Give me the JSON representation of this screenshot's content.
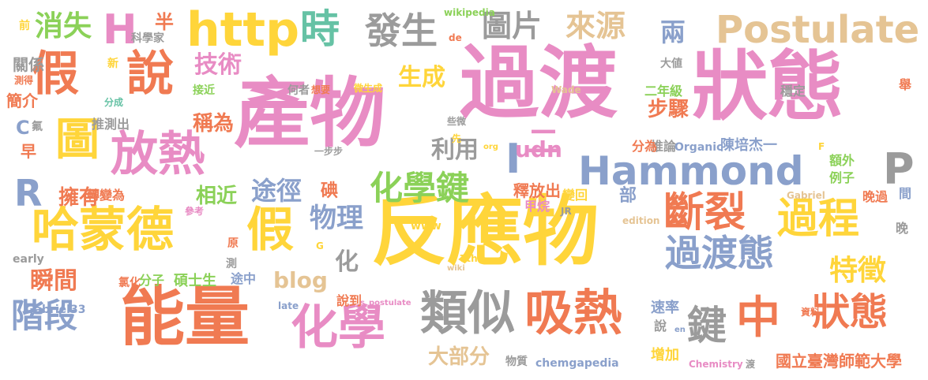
{
  "palette": {
    "pink": "#e88cc4",
    "orange": "#f07a52",
    "yellow": "#ffd53a",
    "blue": "#8aa0cb",
    "green": "#8bd158",
    "gray": "#9b9b9b",
    "tan": "#e5c494",
    "teal": "#66c2a5"
  },
  "words": [
    {
      "text": "產物",
      "color": "pink"
    },
    {
      "text": "過渡",
      "color": "pink"
    },
    {
      "text": "狀態",
      "color": "pink"
    },
    {
      "text": "反應物",
      "color": "yellow"
    },
    {
      "text": "能量",
      "color": "orange"
    },
    {
      "text": "Hammond",
      "color": "blue"
    },
    {
      "text": "http",
      "color": "yellow"
    },
    {
      "text": "假",
      "color": "orange"
    },
    {
      "text": "說",
      "color": "orange"
    },
    {
      "text": "放熱",
      "color": "pink"
    },
    {
      "text": "化學鍵",
      "color": "green"
    },
    {
      "text": "哈蒙德",
      "color": "yellow"
    },
    {
      "text": "假",
      "color": "yellow"
    },
    {
      "text": "化學",
      "color": "pink"
    },
    {
      "text": "類似",
      "color": "gray"
    },
    {
      "text": "吸熱",
      "color": "orange"
    },
    {
      "text": "過渡態",
      "color": "blue"
    },
    {
      "text": "斷裂",
      "color": "orange"
    },
    {
      "text": "過程",
      "color": "yellow"
    },
    {
      "text": "中",
      "color": "orange"
    },
    {
      "text": "狀態",
      "color": "orange"
    },
    {
      "text": "鍵",
      "color": "gray"
    },
    {
      "text": "Postulate",
      "color": "tan"
    },
    {
      "text": "時",
      "color": "teal"
    },
    {
      "text": "H",
      "color": "pink"
    },
    {
      "text": "發生",
      "color": "gray"
    },
    {
      "text": "圖片",
      "color": "gray"
    },
    {
      "text": "來源",
      "color": "tan"
    },
    {
      "text": "兩",
      "color": "blue"
    },
    {
      "text": "圖",
      "color": "yellow"
    },
    {
      "text": "階段",
      "color": "blue"
    },
    {
      "text": "消失",
      "color": "green"
    },
    {
      "text": "特徵",
      "color": "yellow"
    },
    {
      "text": "P",
      "color": "gray"
    },
    {
      "text": "R",
      "color": "blue"
    },
    {
      "text": "技術",
      "color": "pink"
    },
    {
      "text": "生成",
      "color": "yellow"
    },
    {
      "text": "I",
      "color": "blue"
    },
    {
      "text": "二",
      "color": "pink"
    },
    {
      "text": "途徑",
      "color": "blue"
    },
    {
      "text": "擁有",
      "color": "orange"
    },
    {
      "text": "相近",
      "color": "green"
    },
    {
      "text": "物理",
      "color": "blue"
    },
    {
      "text": "瞬間",
      "color": "orange"
    },
    {
      "text": "化",
      "color": "gray"
    },
    {
      "text": "利用",
      "color": "gray"
    },
    {
      "text": "稱為",
      "color": "orange"
    },
    {
      "text": "步驟",
      "color": "orange"
    },
    {
      "text": "udn",
      "color": "pink"
    },
    {
      "text": "blog",
      "color": "tan"
    },
    {
      "text": "大部分",
      "color": "tan"
    },
    {
      "text": "簡介",
      "color": "orange"
    },
    {
      "text": "早",
      "color": "orange"
    },
    {
      "text": "C",
      "color": "blue"
    },
    {
      "text": "半",
      "color": "orange"
    },
    {
      "text": "碘",
      "color": "orange"
    },
    {
      "text": "部",
      "color": "blue"
    },
    {
      "text": "陳培杰一",
      "color": "blue"
    },
    {
      "text": "國立臺灣師範大學",
      "color": "orange"
    },
    {
      "text": "二年級",
      "color": "green"
    },
    {
      "text": "額外",
      "color": "green"
    },
    {
      "text": "例子",
      "color": "green"
    },
    {
      "text": "碩士生",
      "color": "green"
    },
    {
      "text": "推論",
      "color": "gray"
    },
    {
      "text": "分為",
      "color": "orange"
    },
    {
      "text": "Organic",
      "color": "blue"
    },
    {
      "text": "轉變為",
      "color": "orange"
    },
    {
      "text": "推測出",
      "color": "gray"
    },
    {
      "text": "釋放出",
      "color": "orange"
    },
    {
      "text": "變回",
      "color": "yellow"
    },
    {
      "text": "甲烷",
      "color": "pink"
    },
    {
      "text": "分子",
      "color": "green"
    },
    {
      "text": "氯化",
      "color": "orange"
    },
    {
      "text": "途中",
      "color": "blue"
    },
    {
      "text": "物質",
      "color": "gray"
    },
    {
      "text": "chemgapedia",
      "color": "blue"
    },
    {
      "text": "增加",
      "color": "yellow"
    },
    {
      "text": "速率",
      "color": "blue"
    },
    {
      "text": "說到",
      "color": "orange"
    },
    {
      "text": "s_postulate",
      "color": "pink"
    },
    {
      "text": "Gabriel33",
      "color": "blue"
    },
    {
      "text": "late",
      "color": "blue"
    },
    {
      "text": "early",
      "color": "gray"
    },
    {
      "text": "www",
      "color": "yellow"
    },
    {
      "text": "關係",
      "color": "gray"
    },
    {
      "text": "前",
      "color": "yellow"
    },
    {
      "text": "新",
      "color": "yellow"
    },
    {
      "text": "科學家",
      "color": "gray"
    },
    {
      "text": "何者",
      "color": "gray"
    },
    {
      "text": "想要",
      "color": "orange"
    },
    {
      "text": "微生成",
      "color": "yellow"
    },
    {
      "text": "Wade",
      "color": "tan"
    },
    {
      "text": "大値",
      "color": "gray"
    },
    {
      "text": "wikipedia",
      "color": "green"
    },
    {
      "text": "de",
      "color": "orange"
    },
    {
      "text": "接近",
      "color": "green"
    },
    {
      "text": "分成",
      "color": "teal"
    },
    {
      "text": "測得",
      "color": "orange"
    },
    {
      "text": "氟",
      "color": "gray"
    },
    {
      "text": "一步步",
      "color": "gray"
    },
    {
      "text": "些微",
      "color": "gray"
    },
    {
      "text": "先",
      "color": "yellow"
    },
    {
      "text": "org",
      "color": "yellow"
    },
    {
      "text": "穩定",
      "color": "gray"
    },
    {
      "text": "舉",
      "color": "orange"
    },
    {
      "text": "F",
      "color": "yellow"
    },
    {
      "text": "Gabriel",
      "color": "tan"
    },
    {
      "text": "晚過",
      "color": "orange"
    },
    {
      "text": "間",
      "color": "blue"
    },
    {
      "text": "晚",
      "color": "gray"
    },
    {
      "text": "參考",
      "color": "pink"
    },
    {
      "text": "原",
      "color": "orange"
    },
    {
      "text": "測",
      "color": "gray"
    },
    {
      "text": "G",
      "color": "yellow"
    },
    {
      "text": "JR",
      "color": "gray"
    },
    {
      "text": "edition",
      "color": "tan"
    },
    {
      "text": "7th",
      "color": "yellow"
    },
    {
      "text": "wiki",
      "color": "tan"
    },
    {
      "text": "資料",
      "color": "orange"
    },
    {
      "text": "Chemistry",
      "color": "pink"
    },
    {
      "text": "渡",
      "color": "gray"
    },
    {
      "text": "說",
      "color": "gray"
    },
    {
      "text": "en",
      "color": "blue"
    }
  ]
}
